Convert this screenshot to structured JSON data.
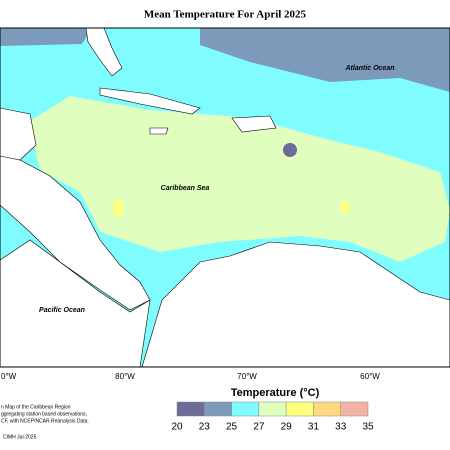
{
  "title": "Mean Temperature For April 2025",
  "map": {
    "labels": [
      "Atlantic Ocean",
      "Caribbean Sea",
      "Pacific Ocean"
    ],
    "longitude_labels": [
      "0°W",
      "80°W",
      "70°W",
      "60°W"
    ]
  },
  "legend": {
    "title": "Temperature (°C)",
    "ticks": [
      20,
      23,
      25,
      27,
      29,
      31,
      33,
      35
    ],
    "colors": [
      "#6f6b98",
      "#7c9bbb",
      "#7ffcff",
      "#e0ffbf",
      "#ffff80",
      "#ffd97f",
      "#f2b3a6"
    ]
  },
  "footnote": [
    "n Map of the Caribbean Region",
    "ggregating station based observations,",
    "CF, with NCEP/NCAR Reanalysis Data.",
    "CIMH Jul-2025"
  ]
}
